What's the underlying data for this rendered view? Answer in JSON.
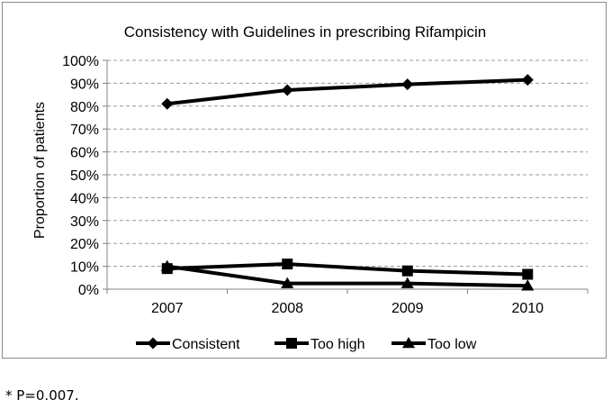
{
  "chart_data": {
    "type": "line",
    "title": "Consistency with Guidelines in prescribing Rifampicin",
    "xlabel": "",
    "ylabel": "Proportion of patients",
    "categories": [
      "2007",
      "2008",
      "2009",
      "2010"
    ],
    "ylim": [
      0,
      100
    ],
    "y_ticks": [
      "0%",
      "10%",
      "20%",
      "30%",
      "40%",
      "50%",
      "60%",
      "70%",
      "80%",
      "90%",
      "100%"
    ],
    "grid": "horizontal dashed",
    "legend_position": "bottom",
    "series": [
      {
        "name": "Consistent",
        "marker": "diamond",
        "color": "#000000",
        "values": [
          81,
          87,
          89.5,
          91.5
        ]
      },
      {
        "name": "Too high",
        "marker": "square",
        "color": "#000000",
        "values": [
          9,
          11,
          8,
          6.5
        ]
      },
      {
        "name": "Too low",
        "marker": "triangle",
        "color": "#000000",
        "values": [
          10,
          2.5,
          2.5,
          1.5
        ]
      }
    ]
  },
  "footnote": "* P=0.007."
}
